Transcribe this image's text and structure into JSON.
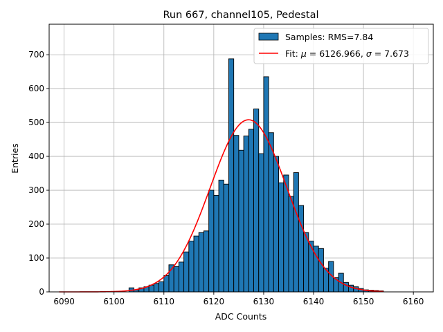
{
  "chart_data": {
    "type": "bar",
    "title": "Run 667, channel105, Pedestal",
    "xlabel": "ADC Counts",
    "ylabel": "Entries",
    "xlim": [
      6087,
      6164
    ],
    "ylim": [
      0,
      790
    ],
    "xticks": [
      6090,
      6100,
      6110,
      6120,
      6130,
      6140,
      6150,
      6160
    ],
    "yticks": [
      0,
      100,
      200,
      300,
      400,
      500,
      600,
      700
    ],
    "grid": true,
    "legend_position": "upper right",
    "bin_width": 1,
    "bins": {
      "left_edges": [
        6103,
        6104,
        6105,
        6106,
        6107,
        6108,
        6109,
        6110,
        6111,
        6112,
        6113,
        6114,
        6115,
        6116,
        6117,
        6118,
        6119,
        6120,
        6121,
        6122,
        6123,
        6124,
        6125,
        6126,
        6127,
        6128,
        6129,
        6130,
        6131,
        6132,
        6133,
        6134,
        6135,
        6136,
        6137,
        6138,
        6139,
        6140,
        6141,
        6142,
        6143,
        6144,
        6145,
        6146,
        6147,
        6148,
        6149,
        6150,
        6151,
        6152,
        6153
      ],
      "counts": [
        12,
        6,
        12,
        15,
        20,
        25,
        30,
        48,
        80,
        75,
        88,
        118,
        150,
        165,
        175,
        180,
        300,
        285,
        330,
        318,
        688,
        462,
        418,
        460,
        480,
        540,
        408,
        635,
        470,
        400,
        322,
        345,
        282,
        352,
        255,
        175,
        150,
        135,
        128,
        70,
        90,
        42,
        55,
        28,
        20,
        15,
        10,
        6,
        5,
        4,
        3
      ]
    },
    "series": [
      {
        "name": "Samples: RMS=7.84",
        "kind": "histogram",
        "color": "#1f77b4"
      },
      {
        "name": "Fit: μ = 6126.966, σ = 7.673",
        "kind": "gaussian_fit",
        "mu": 6126.966,
        "sigma": 7.673,
        "amplitude": 508,
        "x_range": [
          6089,
          6154
        ],
        "color": "#ff0000"
      }
    ],
    "legend": {
      "hist_label_prefix": "Samples: RMS=",
      "hist_label_value": "7.84",
      "fit_label_prefix": "Fit: ",
      "mu_symbol": "μ",
      "fit_mu_text": " = 6126.966, ",
      "sigma_symbol": "σ",
      "fit_sigma_text": " = 7.673"
    }
  }
}
